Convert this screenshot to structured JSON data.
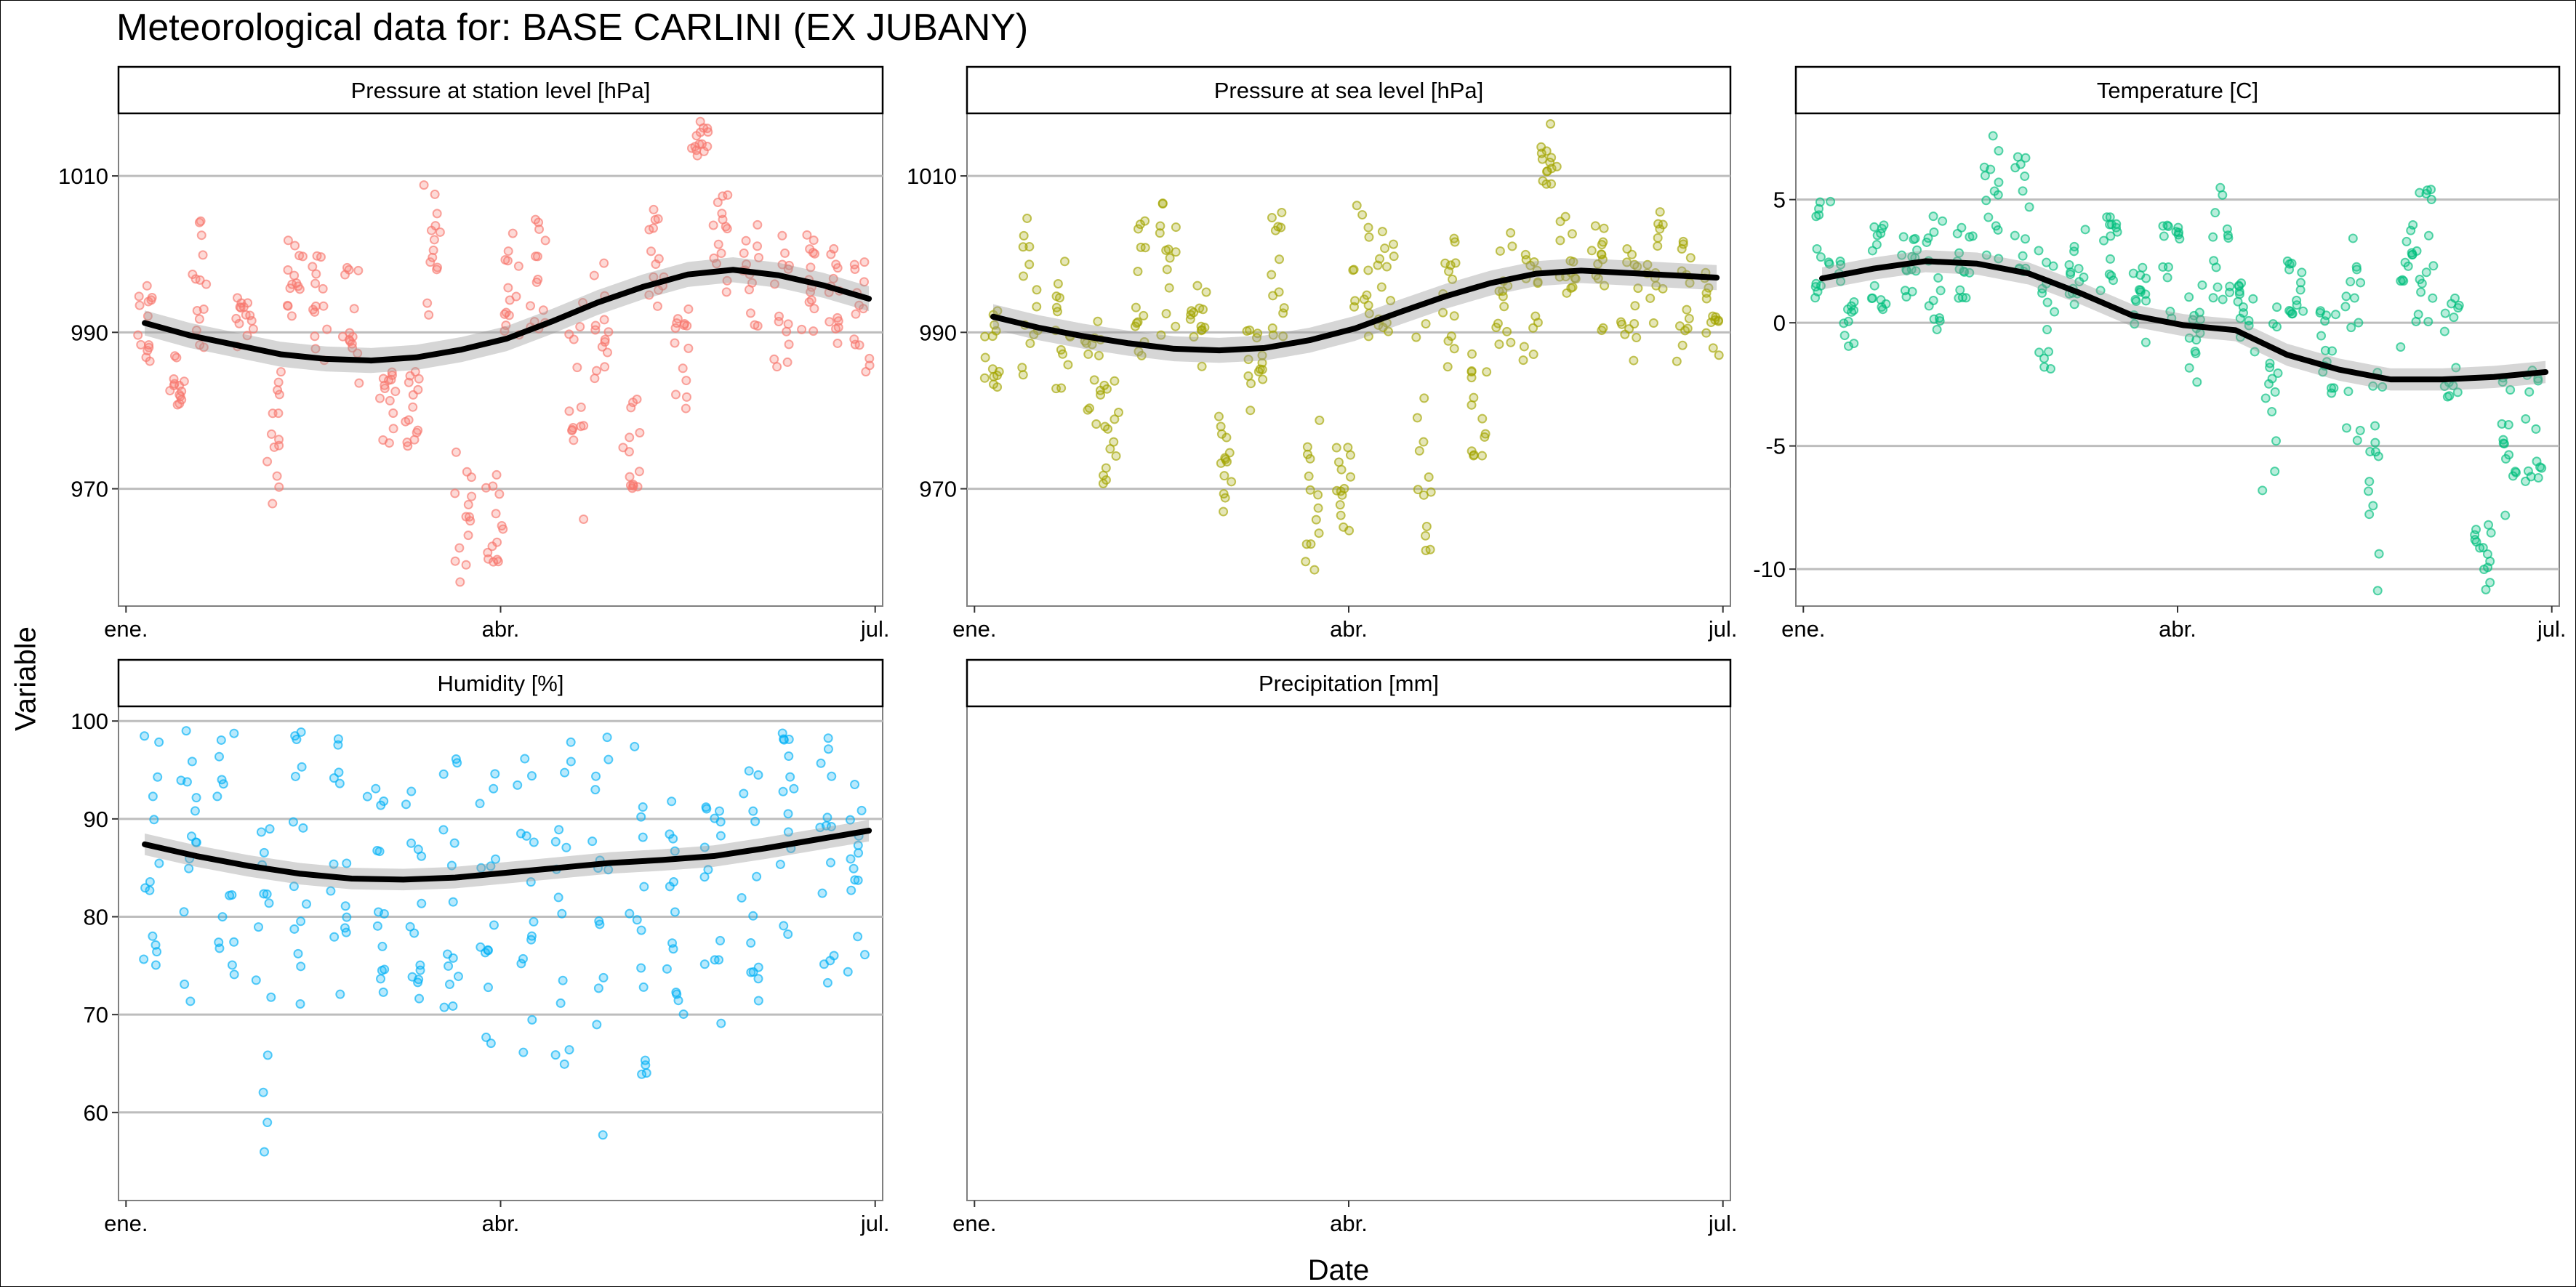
{
  "title": "Meteorological data for: BASE CARLINI (EX JUBANY)",
  "xlabel": "Date",
  "ylabel": "Variable",
  "chart_data": {
    "type": "scatter",
    "title": "Meteorological data for: BASE CARLINI (EX JUBANY)",
    "xlabel": "Date",
    "ylabel": "Variable",
    "grid": "horizontal major lines",
    "x_tick_labels": [
      "ene.",
      "abr.",
      "jul."
    ],
    "xlim": [
      "ene.",
      "jul."
    ],
    "smoother": "black line with grey confidence band",
    "panels": [
      {
        "name": "Pressure at station level [hPa]",
        "color": "#F8766D",
        "ylim": [
          955,
          1018
        ],
        "y_ticks": [
          970,
          990,
          1010
        ],
        "x_months": [
          0.15,
          0.3,
          0.45,
          0.6,
          0.75,
          0.95,
          1.2,
          1.45,
          1.7,
          1.95,
          2.2,
          2.45,
          2.7,
          2.95,
          3.2,
          3.45,
          3.7,
          3.95,
          4.2,
          4.45,
          4.7,
          4.95,
          5.2,
          5.45,
          5.7,
          5.95
        ],
        "smooth_y": [
          991.2,
          989.6,
          988.4,
          987.2,
          986.6,
          986.4,
          986.8,
          987.8,
          989.2,
          991.4,
          993.8,
          995.8,
          997.4,
          998.0,
          997.3,
          996.0,
          994.3
        ],
        "band_halfwidth": 1.6,
        "clusters": [
          {
            "x": 0.15,
            "y0": 984,
            "y1": 996
          },
          {
            "x": 0.4,
            "y0": 980,
            "y1": 988
          },
          {
            "x": 0.6,
            "y0": 988,
            "y1": 1005
          },
          {
            "x": 0.95,
            "y0": 986,
            "y1": 995
          },
          {
            "x": 1.2,
            "y0": 968,
            "y1": 985
          },
          {
            "x": 1.35,
            "y0": 992,
            "y1": 1003
          },
          {
            "x": 1.55,
            "y0": 986,
            "y1": 1000
          },
          {
            "x": 1.8,
            "y0": 983,
            "y1": 999
          },
          {
            "x": 2.1,
            "y0": 975,
            "y1": 985
          },
          {
            "x": 2.3,
            "y0": 975,
            "y1": 986
          },
          {
            "x": 2.45,
            "y0": 990,
            "y1": 1009
          },
          {
            "x": 2.7,
            "y0": 958,
            "y1": 975
          },
          {
            "x": 2.95,
            "y0": 960,
            "y1": 972
          },
          {
            "x": 3.1,
            "y0": 988,
            "y1": 1004
          },
          {
            "x": 3.3,
            "y0": 990,
            "y1": 1005
          },
          {
            "x": 3.6,
            "y0": 962,
            "y1": 995
          },
          {
            "x": 3.8,
            "y0": 984,
            "y1": 1000
          },
          {
            "x": 4.05,
            "y0": 970,
            "y1": 984
          },
          {
            "x": 4.25,
            "y0": 993,
            "y1": 1006
          },
          {
            "x": 4.45,
            "y0": 980,
            "y1": 993
          },
          {
            "x": 4.6,
            "y0": 1012,
            "y1": 1017
          },
          {
            "x": 4.75,
            "y0": 995,
            "y1": 1008
          },
          {
            "x": 5.0,
            "y0": 990,
            "y1": 1005
          },
          {
            "x": 5.25,
            "y0": 984,
            "y1": 1003
          },
          {
            "x": 5.45,
            "y0": 990,
            "y1": 1004
          },
          {
            "x": 5.7,
            "y0": 988,
            "y1": 1003
          },
          {
            "x": 5.9,
            "y0": 984,
            "y1": 1000
          }
        ]
      },
      {
        "name": "Pressure at sea level [hPa]",
        "color": "#A3A500",
        "ylim": [
          955,
          1018
        ],
        "y_ticks": [
          970,
          990,
          1010
        ],
        "x_months": [
          0.15,
          0.3,
          0.45,
          0.6,
          0.75,
          0.95,
          1.2,
          1.45,
          1.7,
          1.95,
          2.2,
          2.45,
          2.7,
          2.95,
          3.2,
          3.45,
          3.7,
          3.95,
          4.2,
          4.45,
          4.7,
          4.95,
          5.2,
          5.45,
          5.7,
          5.95
        ],
        "smooth_y": [
          992.0,
          990.6,
          989.5,
          988.6,
          987.9,
          987.7,
          988.0,
          989.0,
          990.5,
          992.6,
          994.6,
          996.3,
          997.5,
          997.9,
          997.6,
          997.3,
          997.0
        ],
        "band_halfwidth": 1.6,
        "clusters": [
          {
            "x": 0.15,
            "y0": 983,
            "y1": 994
          },
          {
            "x": 0.45,
            "y0": 984,
            "y1": 1007
          },
          {
            "x": 0.7,
            "y0": 982,
            "y1": 1001
          },
          {
            "x": 0.95,
            "y0": 978,
            "y1": 992
          },
          {
            "x": 1.1,
            "y0": 970,
            "y1": 985
          },
          {
            "x": 1.3,
            "y0": 986,
            "y1": 1005
          },
          {
            "x": 1.55,
            "y0": 989,
            "y1": 1007
          },
          {
            "x": 1.8,
            "y0": 985,
            "y1": 997
          },
          {
            "x": 2.0,
            "y0": 966,
            "y1": 980
          },
          {
            "x": 2.25,
            "y0": 980,
            "y1": 992
          },
          {
            "x": 2.45,
            "y0": 988,
            "y1": 1006
          },
          {
            "x": 2.7,
            "y0": 958,
            "y1": 980
          },
          {
            "x": 2.95,
            "y0": 964,
            "y1": 977
          },
          {
            "x": 3.1,
            "y0": 988,
            "y1": 1007
          },
          {
            "x": 3.3,
            "y0": 990,
            "y1": 1004
          },
          {
            "x": 3.6,
            "y0": 962,
            "y1": 992
          },
          {
            "x": 3.8,
            "y0": 985,
            "y1": 1003
          },
          {
            "x": 4.05,
            "y0": 974,
            "y1": 988
          },
          {
            "x": 4.25,
            "y0": 988,
            "y1": 1003
          },
          {
            "x": 4.45,
            "y0": 986,
            "y1": 1000
          },
          {
            "x": 4.6,
            "y0": 1008,
            "y1": 1017
          },
          {
            "x": 4.75,
            "y0": 995,
            "y1": 1006
          },
          {
            "x": 5.0,
            "y0": 990,
            "y1": 1005
          },
          {
            "x": 5.25,
            "y0": 986,
            "y1": 1003
          },
          {
            "x": 5.45,
            "y0": 990,
            "y1": 1007
          },
          {
            "x": 5.7,
            "y0": 986,
            "y1": 1003
          },
          {
            "x": 5.9,
            "y0": 987,
            "y1": 1000
          }
        ]
      },
      {
        "name": "Temperature [C]",
        "color": "#00BF7D",
        "ylim": [
          -11.5,
          8.5
        ],
        "y_ticks": [
          -10,
          -5,
          0,
          5
        ],
        "x_months": [
          0.15,
          0.3,
          0.45,
          0.6,
          0.75,
          0.95,
          1.2,
          1.45,
          1.7,
          1.95,
          2.2,
          2.45,
          2.7,
          2.95,
          3.2,
          3.45,
          3.7,
          3.95,
          4.2,
          4.45,
          4.7,
          4.95,
          5.2,
          5.45,
          5.7,
          5.95
        ],
        "smooth_y": [
          1.8,
          2.2,
          2.5,
          2.4,
          2.0,
          1.2,
          0.3,
          -0.1,
          -0.3,
          -1.3,
          -1.9,
          -2.3,
          -2.3,
          -2.2,
          -2.0
        ],
        "band_halfwidth": 0.45,
        "clusters": [
          {
            "x": 0.15,
            "y0": 1.0,
            "y1": 5.5
          },
          {
            "x": 0.35,
            "y0": -1.0,
            "y1": 3.0
          },
          {
            "x": 0.6,
            "y0": 0.5,
            "y1": 4.0
          },
          {
            "x": 0.85,
            "y0": 1.0,
            "y1": 3.5
          },
          {
            "x": 1.05,
            "y0": -0.5,
            "y1": 4.5
          },
          {
            "x": 1.3,
            "y0": 1.0,
            "y1": 4.0
          },
          {
            "x": 1.5,
            "y0": 2.0,
            "y1": 8.0
          },
          {
            "x": 1.75,
            "y0": 2.0,
            "y1": 7.0
          },
          {
            "x": 1.95,
            "y0": -2.0,
            "y1": 3.0
          },
          {
            "x": 2.2,
            "y0": 0.0,
            "y1": 4.0
          },
          {
            "x": 2.45,
            "y0": 1.0,
            "y1": 4.5
          },
          {
            "x": 2.7,
            "y0": -1.0,
            "y1": 3.0
          },
          {
            "x": 2.95,
            "y0": 0.0,
            "y1": 4.5
          },
          {
            "x": 3.15,
            "y0": -2.5,
            "y1": 3.0
          },
          {
            "x": 3.35,
            "y0": 0.0,
            "y1": 5.5
          },
          {
            "x": 3.55,
            "y0": -1.5,
            "y1": 2.0
          },
          {
            "x": 3.75,
            "y0": -8.0,
            "y1": 1.0
          },
          {
            "x": 3.95,
            "y0": 0.0,
            "y1": 4.0
          },
          {
            "x": 4.2,
            "y0": -3.0,
            "y1": 1.0
          },
          {
            "x": 4.4,
            "y0": -5.0,
            "y1": 3.5
          },
          {
            "x": 4.6,
            "y0": -11.0,
            "y1": -2.0
          },
          {
            "x": 4.85,
            "y0": -1.0,
            "y1": 4.0
          },
          {
            "x": 5.0,
            "y0": 0.0,
            "y1": 5.5
          },
          {
            "x": 5.2,
            "y0": -3.5,
            "y1": 1.0
          },
          {
            "x": 5.45,
            "y0": -11.0,
            "y1": -8.0
          },
          {
            "x": 5.65,
            "y0": -8.0,
            "y1": -2.0
          },
          {
            "x": 5.85,
            "y0": -6.5,
            "y1": -1.0
          }
        ]
      },
      {
        "name": "Humidity [%]",
        "color": "#00B0F6",
        "ylim": [
          51,
          101.5
        ],
        "y_ticks": [
          60,
          70,
          80,
          90,
          100
        ],
        "x_months": [
          0.15,
          0.3,
          0.45,
          0.6,
          0.75,
          0.95,
          1.2,
          1.45,
          1.7,
          1.95,
          2.2,
          2.45,
          2.7,
          2.95,
          3.2,
          3.45,
          3.7,
          3.95,
          4.2,
          4.45,
          4.7,
          4.95,
          5.2,
          5.45,
          5.7,
          5.95
        ],
        "smooth_y": [
          87.4,
          86.2,
          85.2,
          84.4,
          83.9,
          83.8,
          84.0,
          84.5,
          85.0,
          85.5,
          85.8,
          86.2,
          87.0,
          87.9,
          88.8
        ],
        "band_halfwidth": 1.1,
        "clusters": [
          {
            "x": 0.2,
            "y0": 74,
            "y1": 99
          },
          {
            "x": 0.5,
            "y0": 70,
            "y1": 100
          },
          {
            "x": 0.8,
            "y0": 74,
            "y1": 99
          },
          {
            "x": 1.1,
            "y0": 53,
            "y1": 90
          },
          {
            "x": 1.4,
            "y0": 67,
            "y1": 99
          },
          {
            "x": 1.7,
            "y0": 72,
            "y1": 99
          },
          {
            "x": 2.0,
            "y0": 63,
            "y1": 97
          },
          {
            "x": 2.3,
            "y0": 70,
            "y1": 99
          },
          {
            "x": 2.6,
            "y0": 68,
            "y1": 99
          },
          {
            "x": 2.9,
            "y0": 64,
            "y1": 98
          },
          {
            "x": 3.2,
            "y0": 59,
            "y1": 97
          },
          {
            "x": 3.5,
            "y0": 61,
            "y1": 99
          },
          {
            "x": 3.8,
            "y0": 57,
            "y1": 100
          },
          {
            "x": 4.1,
            "y0": 62,
            "y1": 99
          },
          {
            "x": 4.4,
            "y0": 67,
            "y1": 95
          },
          {
            "x": 4.7,
            "y0": 69,
            "y1": 93
          },
          {
            "x": 5.0,
            "y0": 71,
            "y1": 96
          },
          {
            "x": 5.3,
            "y0": 74,
            "y1": 99
          },
          {
            "x": 5.6,
            "y0": 72,
            "y1": 99
          },
          {
            "x": 5.85,
            "y0": 72,
            "y1": 96
          }
        ]
      },
      {
        "name": "Precipitation [mm]",
        "color": "#E76BF3",
        "ylim": null,
        "y_ticks": [],
        "x_months": [],
        "smooth_y": [],
        "band_halfwidth": 0,
        "clusters": []
      }
    ]
  }
}
